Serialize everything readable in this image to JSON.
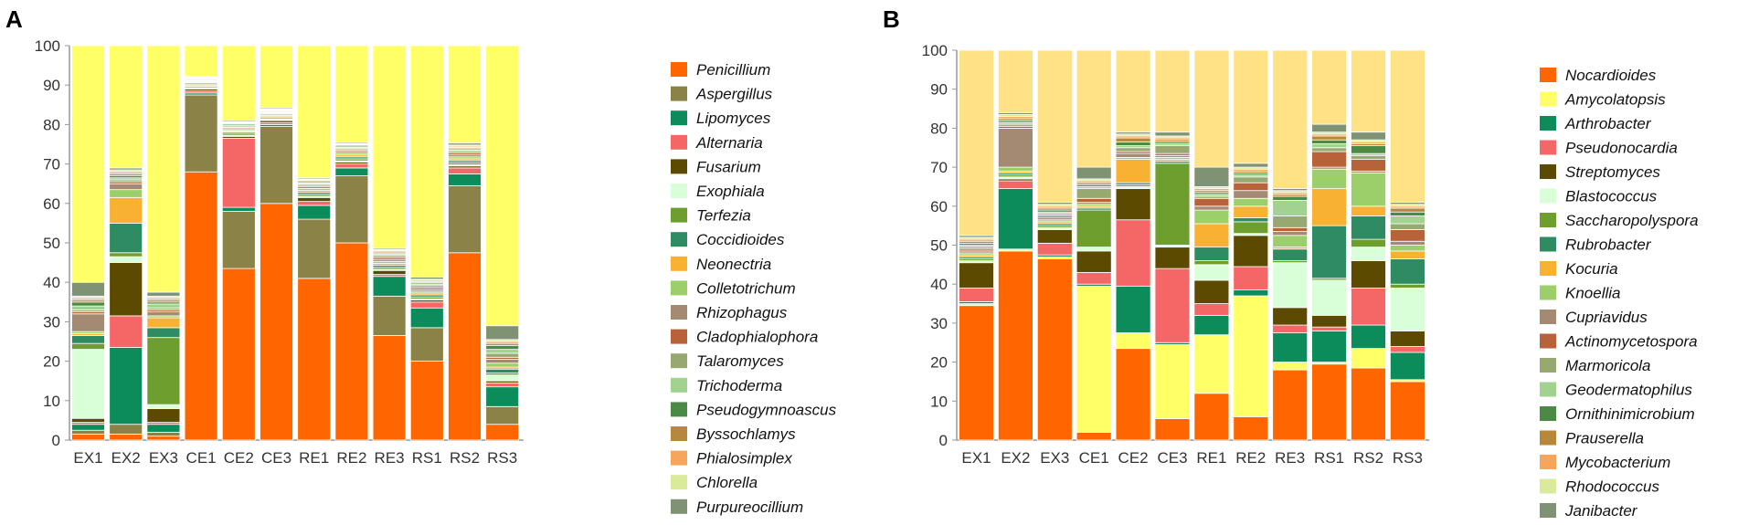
{
  "chart_data": [
    {
      "panel": "A",
      "type": "bar",
      "stacked": true,
      "ylim": [
        0,
        100
      ],
      "yticks": [
        0,
        10,
        20,
        30,
        40,
        50,
        60,
        70,
        80,
        90,
        100
      ],
      "categories": [
        "EX1",
        "EX2",
        "EX3",
        "CE1",
        "CE2",
        "CE3",
        "RE1",
        "RE2",
        "RE3",
        "RS1",
        "RS2",
        "RS3"
      ],
      "legend": [
        "Penicillium",
        "Aspergillus",
        "Lipomyces",
        "Alternaria",
        "Fusarium",
        "Exophiala",
        "Terfezia",
        "Coccidioides",
        "Neonectria",
        "Colletotrichum",
        "Rhizophagus",
        "Cladophialophora",
        "Talaromyces",
        "Trichoderma",
        "Pseudogymnoascus",
        "Byssochlamys",
        "Phialosimplex",
        "Chlorella",
        "Purpureocillium"
      ],
      "colors": [
        "#ff6600",
        "#8a8247",
        "#0b8c5a",
        "#f56767",
        "#5c4a00",
        "#d9ffd9",
        "#6e9e2e",
        "#2e8b62",
        "#f8b133",
        "#9ccf6a",
        "#a48a72",
        "#b8623a",
        "#97a870",
        "#a2d28f",
        "#4a8a45",
        "#b7873b",
        "#f6a65a",
        "#d9ea9a",
        "#7f9273"
      ],
      "other_color": "#ffff66",
      "series_values": [
        [
          1.5,
          1.5,
          1,
          68,
          43.5,
          60,
          41,
          50,
          26.5,
          20,
          47.5,
          4
        ],
        [
          1,
          2.5,
          1,
          19.5,
          14.5,
          19.5,
          15,
          17,
          10,
          8.5,
          17,
          4.5
        ],
        [
          1.5,
          19.5,
          2,
          0.5,
          1,
          0.5,
          3.5,
          2,
          5,
          5,
          3,
          5
        ],
        [
          0.5,
          8,
          0.5,
          0.5,
          17.5,
          0.5,
          1,
          1,
          0.5,
          1.5,
          1.5,
          1
        ],
        [
          1,
          13.5,
          3.5,
          0.5,
          0.5,
          0.5,
          1,
          0.5,
          1,
          0.5,
          0.5,
          0.5
        ],
        [
          17.5,
          1.5,
          1,
          0.2,
          0.3,
          0.2,
          0.3,
          0.3,
          0.3,
          0.3,
          0.3,
          1.5
        ],
        [
          1.5,
          1,
          17,
          0.2,
          0.5,
          0.2,
          0.5,
          0.5,
          0.5,
          0.5,
          0.5,
          0.5
        ],
        [
          2,
          7.5,
          2.5,
          0.3,
          0.3,
          0.3,
          0.5,
          0.5,
          0.5,
          0.5,
          0.5,
          1
        ],
        [
          0.5,
          6.5,
          2.5,
          0.3,
          0.3,
          0.3,
          0.5,
          0.5,
          0.5,
          0.5,
          0.5,
          0.5
        ],
        [
          0.5,
          2,
          0.5,
          0.3,
          0.3,
          0.3,
          0.5,
          0.5,
          0.5,
          0.5,
          0.5,
          1
        ],
        [
          4.5,
          1.5,
          1,
          0.3,
          0.3,
          0.3,
          0.5,
          0.5,
          0.5,
          0.5,
          0.5,
          1
        ],
        [
          0.5,
          0.5,
          0.5,
          0.2,
          0.3,
          0.2,
          0.3,
          0.3,
          0.5,
          0.5,
          0.5,
          0.5
        ],
        [
          0.5,
          0.5,
          0.5,
          0.2,
          0.3,
          0.2,
          0.3,
          0.3,
          0.5,
          0.5,
          0.5,
          1
        ],
        [
          1,
          0.5,
          1,
          0.2,
          0.3,
          0.2,
          0.3,
          0.3,
          0.3,
          0.3,
          0.3,
          1
        ],
        [
          1,
          0.5,
          0.5,
          0.2,
          0.3,
          0.2,
          0.3,
          0.3,
          0.3,
          0.3,
          0.3,
          1
        ],
        [
          0.5,
          0.5,
          0.5,
          0.2,
          0.2,
          0.2,
          0.3,
          0.3,
          0.3,
          0.3,
          0.3,
          0.5
        ],
        [
          0.5,
          0.5,
          0.5,
          0.2,
          0.2,
          0.2,
          0.2,
          0.2,
          0.3,
          0.3,
          0.3,
          0.5
        ],
        [
          0.5,
          0.5,
          0.5,
          0.2,
          0.2,
          0.2,
          0.2,
          0.2,
          0.3,
          0.3,
          0.3,
          0.5
        ],
        [
          3.5,
          0.5,
          1,
          0.2,
          0.3,
          0.3,
          0.3,
          0.3,
          0.3,
          0.5,
          0.5,
          3.5
        ]
      ]
    },
    {
      "panel": "B",
      "type": "bar",
      "stacked": true,
      "ylim": [
        0,
        100
      ],
      "yticks": [
        0,
        10,
        20,
        30,
        40,
        50,
        60,
        70,
        80,
        90,
        100
      ],
      "categories": [
        "EX1",
        "EX2",
        "EX3",
        "CE1",
        "CE2",
        "CE3",
        "RE1",
        "RE2",
        "RE3",
        "RS1",
        "RS2",
        "RS3"
      ],
      "legend": [
        "Nocardioides",
        "Amycolatopsis",
        "Arthrobacter",
        "Pseudonocardia",
        "Streptomyces",
        "Blastococcus",
        "Saccharopolyspora",
        "Rubrobacter",
        "Kocuria",
        "Knoellia",
        "Cupriavidus",
        "Actinomycetospora",
        "Marmoricola",
        "Geodermatophilus",
        "Ornithinimicrobium",
        "Prauserella",
        "Mycobacterium",
        "Rhodococcus",
        "Janibacter"
      ],
      "colors": [
        "#ff6600",
        "#ffff66",
        "#0b8c5a",
        "#f56767",
        "#5c4a00",
        "#d9ffd9",
        "#6e9e2e",
        "#2e8b62",
        "#f8b133",
        "#9ccf6a",
        "#a48a72",
        "#b8623a",
        "#97a870",
        "#a2d28f",
        "#4a8a45",
        "#b7873b",
        "#f6a65a",
        "#d9ea9a",
        "#7f9273"
      ],
      "other_color": "#ffe285",
      "series_values": [
        [
          34.5,
          48.5,
          46.5,
          2,
          23.5,
          5.5,
          12,
          6,
          18,
          19.5,
          18.5,
          15
        ],
        [
          0.5,
          0.5,
          0.5,
          37.5,
          4,
          19,
          15,
          31,
          2,
          0.5,
          5,
          0.5
        ],
        [
          0.5,
          15.5,
          0.5,
          0.5,
          12,
          0.5,
          5,
          1.5,
          7.5,
          8,
          6,
          7
        ],
        [
          3.5,
          2,
          3,
          3,
          17,
          19,
          3,
          6,
          2,
          1,
          9.5,
          1.5
        ],
        [
          6.5,
          0.5,
          3.5,
          5.5,
          8,
          5.5,
          6,
          8,
          4.5,
          3,
          7,
          4
        ],
        [
          0.5,
          0.5,
          0.5,
          1,
          0.5,
          0.5,
          4,
          0.5,
          11.5,
          9,
          3.5,
          11
        ],
        [
          0.5,
          0.5,
          0.5,
          9.5,
          0.5,
          21,
          1,
          3,
          0.5,
          0.5,
          2,
          1
        ],
        [
          0.5,
          0.5,
          0.5,
          0.5,
          0.5,
          0.5,
          3.5,
          1,
          3,
          13.5,
          6,
          6.5
        ],
        [
          0.5,
          0.5,
          0.5,
          0.5,
          6,
          0.5,
          6,
          3,
          0.5,
          9.5,
          2.5,
          2
        ],
        [
          0.5,
          1,
          0.5,
          0.5,
          0.5,
          0.5,
          3.5,
          2,
          3,
          5,
          8.5,
          1.5
        ],
        [
          0.5,
          10,
          0.5,
          0.5,
          1,
          0.5,
          1,
          2,
          1,
          0.5,
          0.5,
          1
        ],
        [
          0.5,
          0.5,
          0.5,
          1,
          0.5,
          0.5,
          2,
          2,
          1,
          4,
          3,
          3
        ],
        [
          0.5,
          0.5,
          0.5,
          2.5,
          1,
          2,
          0.5,
          1.5,
          3,
          1,
          1,
          1.5
        ],
        [
          0.5,
          0.5,
          0.5,
          0.5,
          0.5,
          0.5,
          0.5,
          0.5,
          4,
          1,
          0.5,
          2
        ],
        [
          0.5,
          0.5,
          0.5,
          0.5,
          1,
          0.5,
          0.5,
          0.5,
          1,
          1,
          2,
          1
        ],
        [
          0.5,
          0.5,
          0.5,
          0.5,
          1,
          0.5,
          0.5,
          0.5,
          0.5,
          1,
          0.5,
          1
        ],
        [
          0.5,
          0.5,
          0.5,
          0.5,
          0.5,
          0.5,
          0.5,
          0.5,
          0.5,
          0.5,
          0.5,
          0.5
        ],
        [
          0.5,
          0.5,
          0.5,
          0.5,
          0.5,
          0.5,
          0.5,
          0.5,
          0.5,
          0.5,
          0.5,
          0.5
        ],
        [
          0.5,
          0.5,
          0.5,
          3,
          0.5,
          1,
          5,
          1,
          0.5,
          2,
          2,
          0.5
        ]
      ]
    }
  ]
}
